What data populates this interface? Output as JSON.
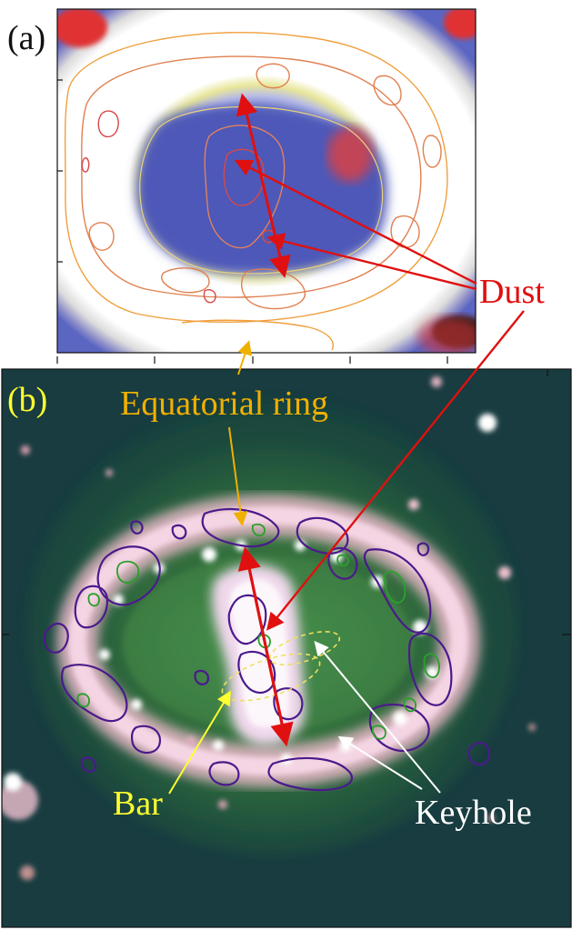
{
  "panels": {
    "a": {
      "label": "(a)"
    },
    "b": {
      "label": "(b)"
    }
  },
  "annotations": {
    "dust": "Dust",
    "equatorial_ring": "Equatorial ring",
    "bar": "Bar",
    "keyhole": "Keyhole"
  },
  "colors": {
    "dust_arrow": "#e01010",
    "ring_arrow": "#f0b000",
    "bar_label": "#ffff30",
    "keyhole_label": "#ffffff",
    "contour_purple": "#4b1a8c",
    "contour_green": "#2aa02a",
    "contour_orange": "#f0a040",
    "contour_red": "#d84848"
  }
}
